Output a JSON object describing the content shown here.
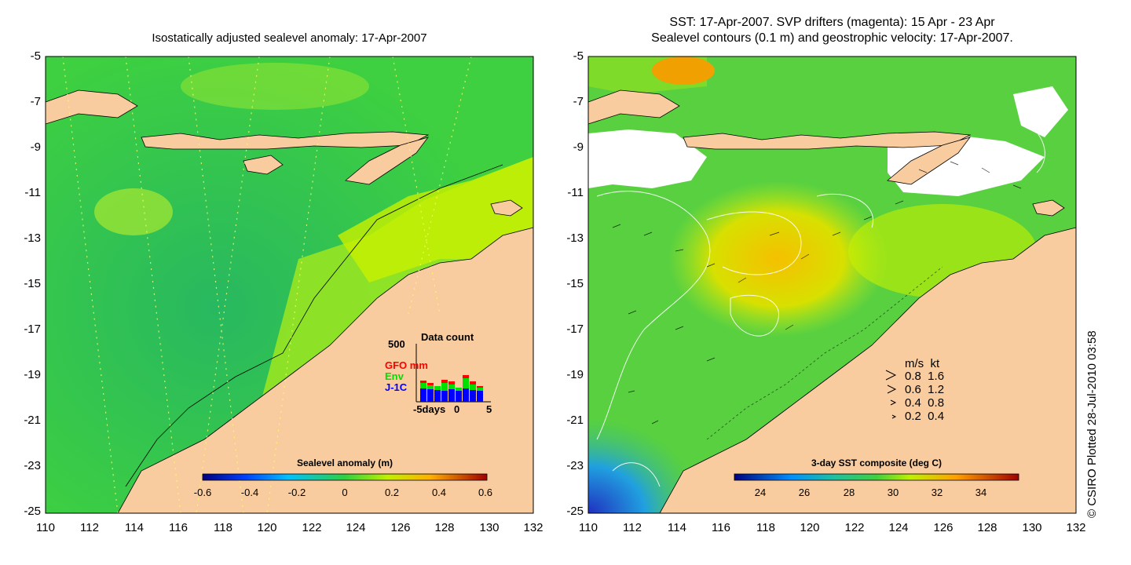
{
  "left_panel": {
    "title": "Isostatically adjusted sealevel anomaly: 17-Apr-2007",
    "x_ticks": [
      "110",
      "112",
      "114",
      "116",
      "118",
      "120",
      "122",
      "124",
      "126",
      "128",
      "130",
      "132"
    ],
    "y_ticks": [
      "-5",
      "-7",
      "-9",
      "-11",
      "-13",
      "-15",
      "-17",
      "-19",
      "-21",
      "-23",
      "-25"
    ],
    "colorbar": {
      "title": "Sealevel anomaly (m)",
      "ticks": [
        "-0.6",
        "-0.4",
        "-0.2",
        "0",
        "0.2",
        "0.4",
        "0.6"
      ]
    },
    "data_count": {
      "title": "Data count",
      "ymax_label": "500",
      "series": [
        {
          "name": "GFO mm",
          "color": "#ff0000"
        },
        {
          "name": "Env",
          "color": "#00e000"
        },
        {
          "name": "J-1C",
          "color": "#0000ff"
        }
      ],
      "x_labels": [
        "-5days",
        "0",
        "5"
      ]
    }
  },
  "right_panel": {
    "title_line1": "SST: 17-Apr-2007. SVP drifters (magenta): 15 Apr - 23 Apr",
    "title_line2": "Sealevel contours (0.1 m) and geostrophic velocity: 17-Apr-2007.",
    "x_ticks": [
      "110",
      "112",
      "114",
      "116",
      "118",
      "120",
      "122",
      "124",
      "126",
      "128",
      "130",
      "132"
    ],
    "y_ticks": [
      "-5",
      "-7",
      "-9",
      "-11",
      "-13",
      "-15",
      "-17",
      "-19",
      "-21",
      "-23",
      "-25"
    ],
    "colorbar": {
      "title": "3-day SST composite (deg C)",
      "ticks": [
        "24",
        "26",
        "28",
        "30",
        "32",
        "34"
      ]
    },
    "velocity_legend": {
      "header": "m/s  kt",
      "rows": [
        "0.8  1.6",
        "0.6  1.2",
        "0.4  0.8",
        "0.2  0.4"
      ]
    }
  },
  "copyright": "© CSIRO Plotted 28-Jul-2010 03:58",
  "colors": {
    "land": "#f8cc9e",
    "sea_mid": "#2fcc40",
    "sea_high": "#b4f000",
    "cloud": "#ffffff"
  }
}
